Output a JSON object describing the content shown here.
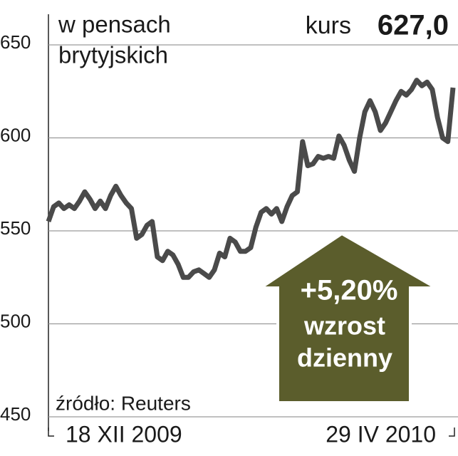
{
  "chart_data": {
    "type": "line",
    "unit_lines": [
      "w pensach",
      "brytyjskich"
    ],
    "price_caption": "kurs",
    "price_text": "627,0",
    "source": "źródło: Reuters",
    "annotation": [
      "+5,20%",
      "wzrost",
      "dzienny"
    ],
    "categories": [
      "18 XII 2009",
      null,
      null,
      null,
      null,
      null,
      null,
      null,
      null,
      null,
      null,
      null,
      null,
      null,
      null,
      null,
      null,
      null,
      null,
      null,
      null,
      null,
      null,
      null,
      null,
      null,
      null,
      null,
      null,
      null,
      null,
      null,
      null,
      null,
      null,
      null,
      null,
      null,
      null,
      null,
      null,
      null,
      null,
      null,
      null,
      null,
      null,
      null,
      null,
      null,
      null,
      null,
      null,
      null,
      null,
      null,
      null,
      null,
      null,
      null,
      null,
      null,
      null,
      null,
      null,
      null,
      null,
      null,
      null,
      null,
      null,
      null,
      null,
      null,
      null,
      null,
      null,
      null,
      "29 IV 2010"
    ],
    "series": [
      {
        "color": "#4a4a4a",
        "values": [
          555,
          563,
          565,
          562,
          564,
          562,
          566,
          571,
          567,
          562,
          566,
          562,
          569,
          574,
          569,
          565,
          562,
          546,
          548,
          553,
          555,
          536,
          534,
          539,
          537,
          532,
          525,
          525,
          528,
          529,
          527,
          525,
          529,
          538,
          536,
          546,
          544,
          539,
          539,
          541,
          552,
          560,
          562,
          559,
          562,
          555,
          563,
          569,
          571,
          598,
          585,
          586,
          590,
          589,
          590,
          589,
          601,
          596,
          588,
          582,
          600,
          614,
          620,
          614,
          604,
          608,
          614,
          620,
          625,
          623,
          626,
          631,
          628,
          630,
          626,
          611,
          600,
          598,
          627
        ]
      }
    ],
    "ylim": [
      450,
      650
    ],
    "yticks": [
      450,
      500,
      550,
      600,
      650
    ],
    "grid": true
  }
}
